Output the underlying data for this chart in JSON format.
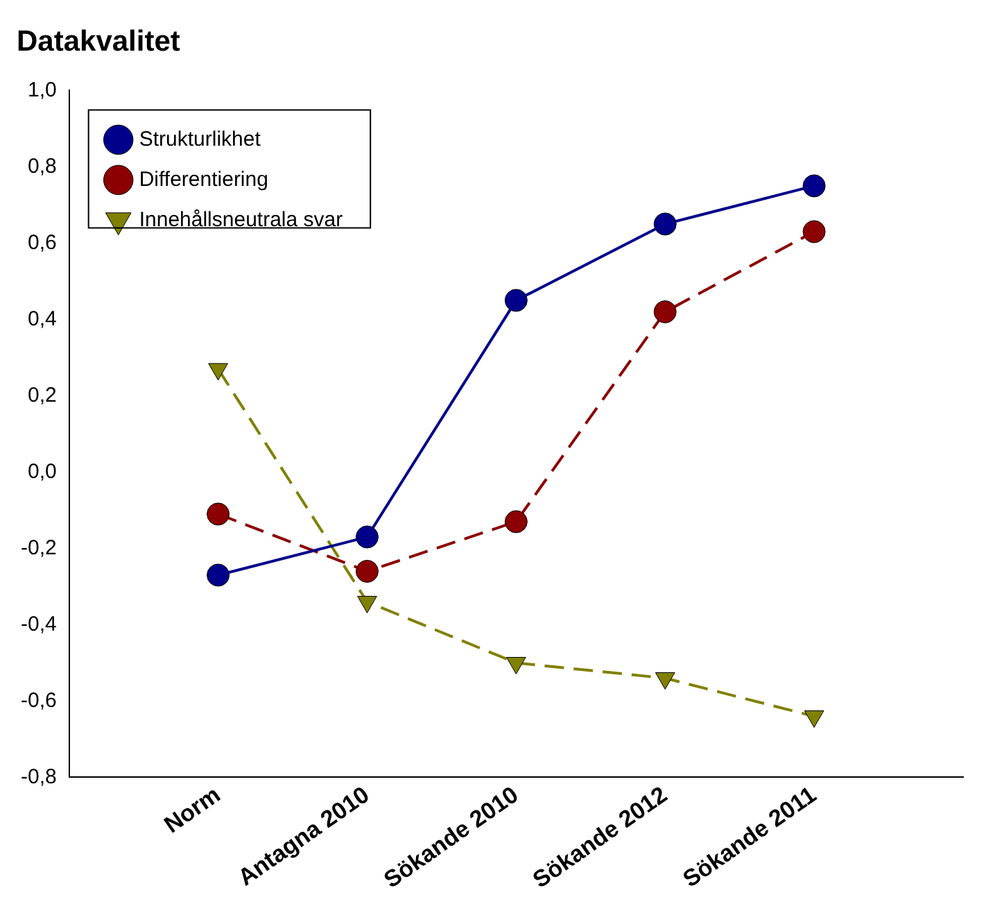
{
  "chart_data": {
    "type": "line",
    "title": "Datakvalitet",
    "categories": [
      "Norm",
      "Antagna 2010",
      "Sökande 2010",
      "Sökande 2012",
      "Sökande 2011"
    ],
    "series": [
      {
        "name": "Strukturlikhet",
        "color": "#00008b",
        "values": [
          -0.27,
          -0.17,
          0.45,
          0.65,
          0.75
        ],
        "marker": "circle",
        "line_style": "solid"
      },
      {
        "name": "Differentiering",
        "color": "#8b0000",
        "values": [
          -0.11,
          -0.26,
          -0.13,
          0.42,
          0.63
        ],
        "marker": "circle",
        "line_style": "dashed"
      },
      {
        "name": "Innehållsneutrala svar",
        "color": "#808000",
        "values": [
          0.27,
          -0.34,
          -0.5,
          -0.54,
          -0.64
        ],
        "marker": "triangle",
        "line_style": "dashed"
      }
    ],
    "ylim": [
      -0.8,
      1.0
    ],
    "yticks": [
      {
        "value": -0.8,
        "label": "-0,8"
      },
      {
        "value": -0.6,
        "label": "-0,6"
      },
      {
        "value": -0.4,
        "label": "-0,4"
      },
      {
        "value": -0.2,
        "label": "-0,2"
      },
      {
        "value": 0,
        "label": "0,0"
      },
      {
        "value": 0.2,
        "label": "0,2"
      },
      {
        "value": 0.4,
        "label": "0,4"
      },
      {
        "value": 0.6,
        "label": "0,6"
      },
      {
        "value": 0.8,
        "label": "0,8"
      },
      {
        "value": 1.0,
        "label": "1,0"
      }
    ],
    "grid": false,
    "legend": "top left"
  }
}
